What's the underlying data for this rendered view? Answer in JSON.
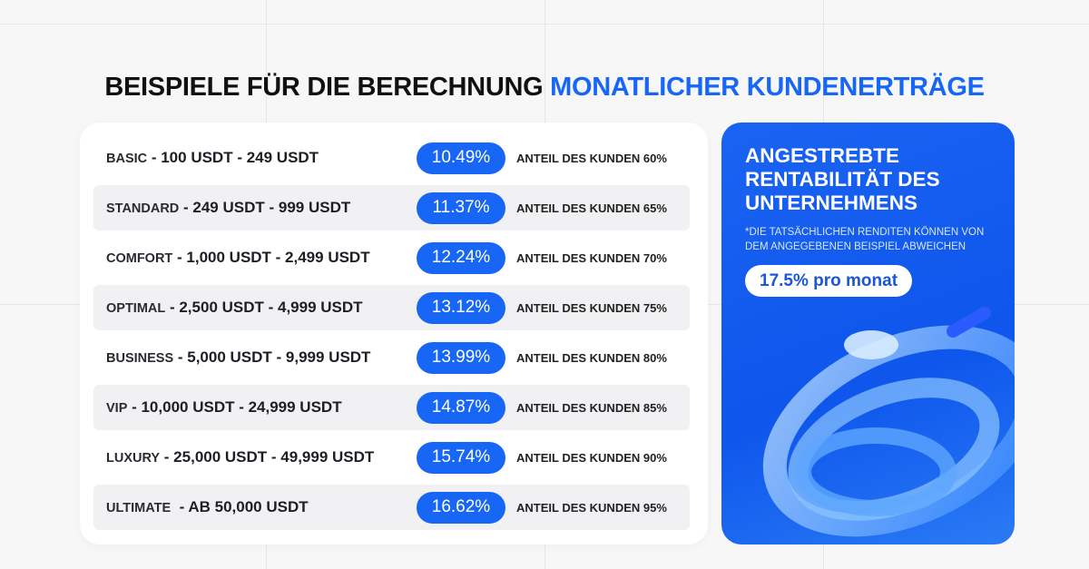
{
  "title": {
    "part1": "BEISPIELE FÜR DIE BERECHNUNG ",
    "part2": "MONATLICHER KUNDENERTRÄGE"
  },
  "plans": [
    {
      "name": "BASIC",
      "range": " - 100 USDT - 249 USDT",
      "rate": "10.49%",
      "share": "ANTEIL DES KUNDEN 60%"
    },
    {
      "name": "STANDARD",
      "range": " - 249 USDT - 999 USDT",
      "rate": "11.37%",
      "share": "ANTEIL DES KUNDEN 65%"
    },
    {
      "name": "COMFORT",
      "range": " - 1,000 USDT - 2,499 USDT",
      "rate": "12.24%",
      "share": "ANTEIL DES KUNDEN 70%"
    },
    {
      "name": "OPTIMAL",
      "range": " - 2,500 USDT - 4,999 USDT",
      "rate": "13.12%",
      "share": "ANTEIL DES KUNDEN 75%"
    },
    {
      "name": "BUSINESS",
      "range": " - 5,000 USDT - 9,999 USDT",
      "rate": "13.99%",
      "share": "ANTEIL DES KUNDEN 80%"
    },
    {
      "name": "VIP",
      "range": " - 10,000 USDT - 24,999 USDT",
      "rate": "14.87%",
      "share": "ANTEIL DES KUNDEN 85%"
    },
    {
      "name": "LUXURY",
      "range": " - 25,000 USDT - 49,999 USDT",
      "rate": "15.74%",
      "share": "ANTEIL DES KUNDEN 90%"
    },
    {
      "name": "ULTIMATE",
      "range": "  - AB 50,000 USDT",
      "rate": "16.62%",
      "share": "ANTEIL DES KUNDEN 95%"
    }
  ],
  "target": {
    "heading": "ANGESTREBTE RENTABILITÄT DES UNTERNEHMENS",
    "note": "*DIE TATSÄCHLICHEN RENDITEN KÖNNEN VON DEM ANGEGEBENEN BEISPIEL ABWEICHEN",
    "value": "17.5% pro monat"
  },
  "colors": {
    "accent": "#1766f5"
  }
}
